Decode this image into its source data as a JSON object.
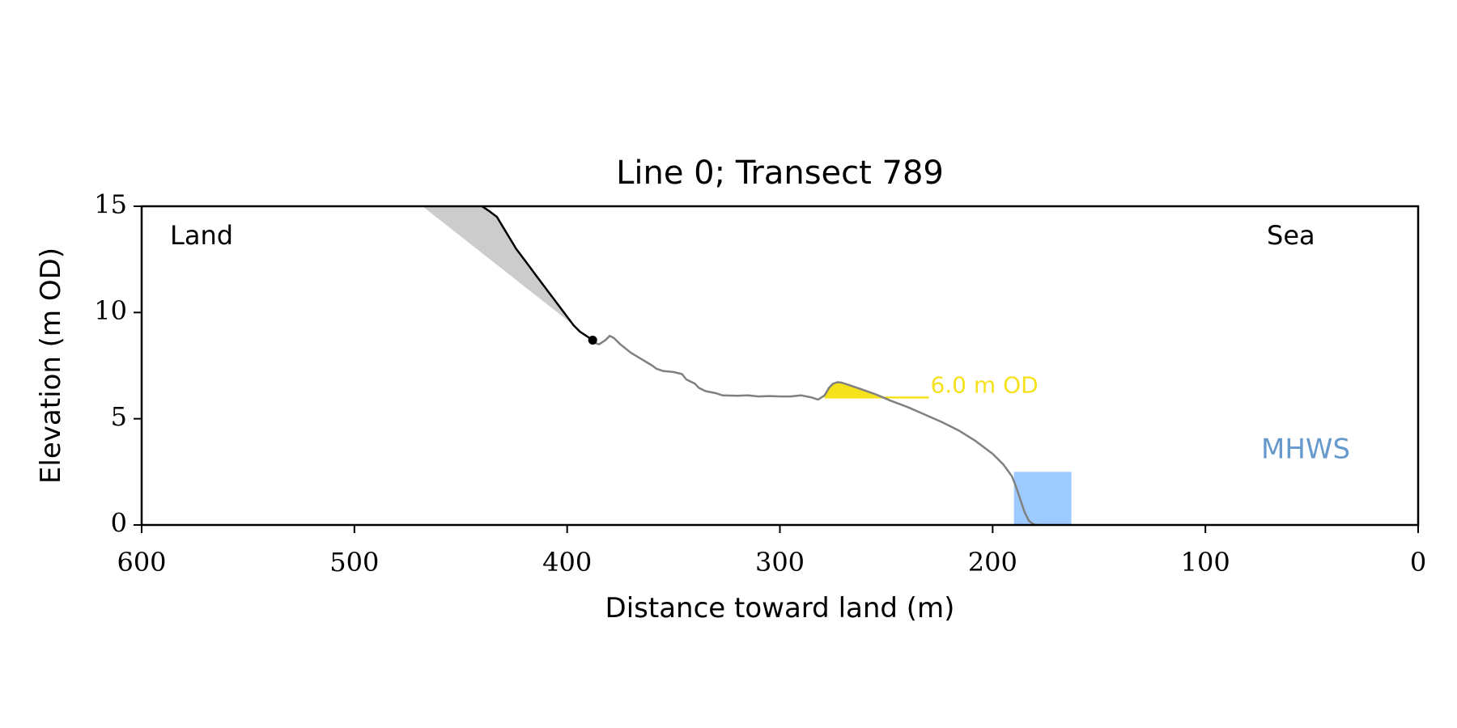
{
  "chart_data": {
    "type": "line",
    "title": "Line 0; Transect 789",
    "xlabel": "Distance toward land (m)",
    "ylabel": "Elevation (m OD)",
    "xlim": [
      600,
      0
    ],
    "ylim": [
      0,
      15
    ],
    "x_ticks": [
      600,
      500,
      400,
      300,
      200,
      100,
      0
    ],
    "y_ticks": [
      0,
      5,
      10,
      15
    ],
    "grid": false,
    "corner_labels": {
      "land": "Land",
      "sea": "Sea"
    },
    "colors": {
      "profile": "#808080",
      "cliff": "#000000",
      "cliff_fill": "#cccccc",
      "threshold": "#f5e21c",
      "mhws": "#9ecbff",
      "mhws_label": "#6699cc"
    },
    "series": [
      {
        "name": "",
        "role": "profile",
        "x": [
          388,
          385,
          382,
          380,
          378,
          375,
          370,
          365,
          360,
          358,
          355,
          350,
          346,
          344,
          340,
          338,
          335,
          330,
          327,
          320,
          315,
          310,
          305,
          300,
          295,
          290,
          285,
          282,
          279,
          277,
          275,
          273,
          271,
          268,
          262,
          255,
          248,
          240,
          232,
          224,
          216,
          208,
          200,
          195,
          191,
          189,
          187,
          185,
          183,
          181,
          180,
          179
        ],
        "y": [
          8.6,
          8.5,
          8.7,
          8.9,
          8.8,
          8.5,
          8.1,
          7.8,
          7.5,
          7.35,
          7.25,
          7.2,
          7.1,
          6.85,
          6.65,
          6.45,
          6.3,
          6.2,
          6.1,
          6.08,
          6.1,
          6.05,
          6.07,
          6.05,
          6.05,
          6.1,
          6.0,
          5.9,
          6.1,
          6.45,
          6.65,
          6.72,
          6.7,
          6.6,
          6.4,
          6.15,
          5.85,
          5.55,
          5.2,
          4.85,
          4.45,
          3.95,
          3.35,
          2.85,
          2.3,
          1.8,
          1.2,
          0.6,
          0.2,
          0.05,
          0.0,
          0.0
        ]
      },
      {
        "name": "",
        "role": "cliff",
        "x": [
          440,
          437,
          433,
          430,
          427,
          424,
          421,
          418,
          415,
          412,
          409,
          406,
          403,
          400,
          397,
          394,
          391,
          388
        ],
        "y": [
          15.0,
          14.8,
          14.5,
          14.0,
          13.5,
          13.0,
          12.6,
          12.2,
          11.8,
          11.4,
          11.0,
          10.6,
          10.2,
          9.8,
          9.4,
          9.1,
          8.9,
          8.7
        ]
      }
    ],
    "cliff_fill_outline": {
      "x": [
        468,
        440,
        437,
        433,
        430,
        427,
        424,
        421,
        418,
        415,
        412,
        409,
        406,
        403,
        400,
        397,
        394,
        391,
        388
      ],
      "y": [
        15.0,
        15.0,
        14.8,
        14.5,
        14.0,
        13.5,
        13.0,
        12.6,
        12.2,
        11.8,
        11.4,
        11.0,
        10.6,
        10.2,
        9.8,
        9.4,
        9.1,
        8.9,
        8.7
      ]
    },
    "cliff_toe_point": {
      "x": 388,
      "y": 8.7
    },
    "threshold": {
      "label": "6.0 m OD",
      "level": 6.0,
      "x_from": 279,
      "x_to": 230,
      "fill_x": [
        279,
        277,
        275,
        273,
        271,
        268,
        262,
        255,
        250
      ],
      "fill_y": [
        6.1,
        6.45,
        6.65,
        6.72,
        6.7,
        6.6,
        6.4,
        6.15,
        6.0
      ]
    },
    "mhws": {
      "label": "MHWS",
      "level": 2.5,
      "x_from": 190,
      "x_to": 163
    }
  }
}
